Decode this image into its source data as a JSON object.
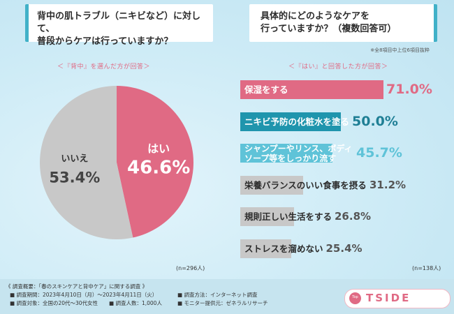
{
  "left": {
    "question_line1": "背中の肌トラブル（ニキビなど）に対して、",
    "question_line2": "普段からケアは行っていますか？",
    "subtitle": "＜『背中』を選んだ方が回答＞",
    "n": "(n=296人)"
  },
  "right": {
    "question_line1": "具体的にどのようなケアを",
    "question_line2": "行っていますか？（複数回答可）",
    "note": "※全8項目中上位6項目抜粋",
    "subtitle": "＜『はい』と回答した方が回答＞",
    "n": "(n=138人)"
  },
  "chart_data": [
    {
      "type": "pie",
      "categories": [
        "はい",
        "いいえ"
      ],
      "values": [
        46.6,
        53.4
      ],
      "value_labels": [
        "46.6%",
        "53.4%"
      ],
      "colors": [
        "#e06a84",
        "#c8c8c8"
      ]
    },
    {
      "type": "bar",
      "orientation": "horizontal",
      "categories": [
        "保湿をする",
        "ニキビ予防の化粧水を塗る",
        "シャンプーやリンス、ボディソープ等をしっかり流す",
        "栄養バランスのいい食事を摂る",
        "規則正しい生活をする",
        "ストレスを溜めない"
      ],
      "label_lines": [
        [
          "保湿をする"
        ],
        [
          "ニキビ予防の化粧水を塗る"
        ],
        [
          "シャンプーやリンス、ボディ",
          "ソープ等をしっかり流す"
        ],
        [
          "栄養バランスのいい食事を摂る"
        ],
        [
          "規則正しい生活をする"
        ],
        [
          "ストレスを溜めない"
        ]
      ],
      "values": [
        71.0,
        50.0,
        45.7,
        31.2,
        26.8,
        25.4
      ],
      "value_labels": [
        "71.0%",
        "50.0%",
        "45.7%",
        "31.2%",
        "26.8%",
        "25.4%"
      ],
      "colors": [
        "#e06a84",
        "#1f95ad",
        "#5fc3d8",
        "#c8c8c8",
        "#c8c8c8",
        "#c8c8c8"
      ],
      "value_colors": [
        "#e06a84",
        "#1f7f95",
        "#5fc3d8",
        "#555555",
        "#555555",
        "#555555"
      ]
    }
  ],
  "footer": {
    "line1": "《 調査概要：「春のスキンケアと背中ケア」に関する調査 》",
    "period": "■ 調査期間：2023年4月10日（月）〜2023年4月11日（火）",
    "target": "■ 調査対象：全国の20代〜30代女性",
    "people": "■ 調査人数：1,000人",
    "method": "■ 調査方法：インターネット調査",
    "provider": "■ モニター提供元：ゼネラルリサーチ"
  },
  "logo": {
    "badge": "Top",
    "text": "TSIDE"
  }
}
